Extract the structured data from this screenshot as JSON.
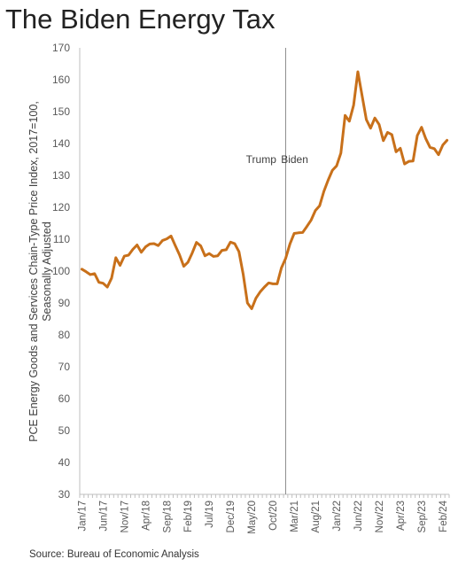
{
  "chart_data": {
    "type": "line",
    "title": "The Biden Energy Tax",
    "ylabel": [
      "PCE Energy Goods and Services Chain-Type Price Index, 2017=100,",
      "Seasonally Adjusted"
    ],
    "xlabel": "",
    "ylim": [
      30,
      170
    ],
    "yticks": [
      30,
      40,
      50,
      60,
      70,
      80,
      90,
      100,
      110,
      120,
      130,
      140,
      150,
      160,
      170
    ],
    "grid": false,
    "xtick_labels": [
      "Jan/17",
      "Jun/17",
      "Nov/17",
      "Apr/18",
      "Sep/18",
      "Feb/19",
      "Jul/19",
      "Dec/19",
      "May/20",
      "Oct/20",
      "Mar/21",
      "Aug/21",
      "Jan/22",
      "Jun/22",
      "Nov/22",
      "Apr/23",
      "Sep/23",
      "Feb/24"
    ],
    "annotations": [
      {
        "text": "Trump",
        "x_month_index": 45.8,
        "y": 135,
        "anchor": "end"
      },
      {
        "text": "Biden",
        "x_month_index": 46.9,
        "y": 135,
        "anchor": "start"
      }
    ],
    "divider_at_month_index": 48.5,
    "series": [
      {
        "name": "",
        "color": "#C8701A",
        "start": "2017-01",
        "values": [
          100.6,
          99.8,
          98.9,
          99.2,
          96.5,
          96.2,
          95.0,
          97.8,
          104.2,
          101.8,
          104.7,
          105.0,
          106.8,
          108.2,
          105.9,
          107.6,
          108.5,
          108.6,
          108.0,
          109.6,
          110.1,
          111.0,
          108.0,
          105.1,
          101.5,
          102.8,
          105.7,
          109.0,
          107.9,
          104.8,
          105.5,
          104.6,
          104.8,
          106.5,
          106.7,
          109.1,
          108.6,
          106.1,
          99.0,
          90.0,
          88.2,
          91.5,
          93.5,
          95.0,
          96.3,
          96.0,
          96.0,
          101.0,
          104.0,
          108.5,
          111.8,
          112.0,
          112.1,
          114.0,
          116.0,
          119.0,
          120.5,
          125.0,
          128.5,
          131.6,
          133.0,
          137.0,
          148.8,
          147.0,
          152.0,
          162.5,
          155.0,
          147.5,
          144.8,
          148.0,
          146.0,
          140.9,
          143.5,
          142.8,
          137.4,
          138.5,
          133.6,
          134.4,
          134.5,
          142.5,
          145.1,
          141.5,
          138.8,
          138.4,
          136.5,
          139.5,
          141.0
        ]
      }
    ],
    "source": "Source: Bureau of Economic Analysis"
  }
}
